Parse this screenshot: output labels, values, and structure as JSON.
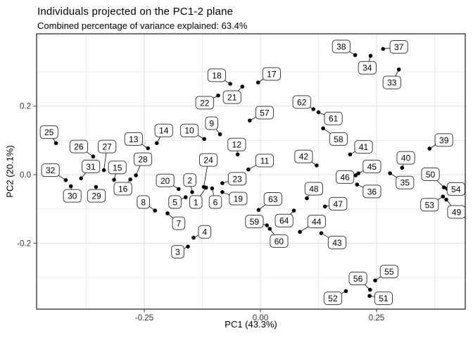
{
  "chart_data": {
    "type": "scatter",
    "title": "Individuals projected on the PC1-2 plane",
    "subtitle": "Combined percentage of variance explained: 63.4%",
    "xlabel": "PC1 (43.3%)",
    "ylabel": "PC2 (20.1%)",
    "xlim": [
      -0.4818,
      0.4409
    ],
    "ylim": [
      -0.3926,
      0.4111
    ],
    "grid": true,
    "legend": "none",
    "x_ticks": [
      {
        "value": -0.25,
        "label": "-0.25"
      },
      {
        "value": 0.0,
        "label": "0.00"
      },
      {
        "value": 0.25,
        "label": "0.25"
      }
    ],
    "y_ticks": [
      {
        "value": 0.2,
        "label": "0.2"
      },
      {
        "value": 0.0,
        "label": "0.0"
      },
      {
        "value": -0.2,
        "label": "-0.2"
      }
    ],
    "x_minor": [
      -0.375,
      -0.125,
      0.125,
      0.375
    ],
    "y_minor": [
      -0.3,
      -0.1,
      0.1,
      0.3
    ],
    "colors": {
      "point": "#000000",
      "segment": "#000000",
      "grid_major": "#dcdcdc",
      "grid_minor": "#ebebeb",
      "panel_border": "#1a1a1a",
      "label_border": "#3d3d3d",
      "label_bg": "#ffffff",
      "label_text": "#000000",
      "tick_text": "#333333"
    },
    "points": [
      {
        "id": "1",
        "x": -0.117,
        "y": -0.038,
        "lx": -0.139,
        "ly": -0.08
      },
      {
        "id": "2",
        "x": -0.147,
        "y": -0.051,
        "lx": -0.152,
        "ly": -0.016
      },
      {
        "id": "3",
        "x": -0.156,
        "y": -0.21,
        "lx": -0.178,
        "ly": -0.225
      },
      {
        "id": "4",
        "x": -0.144,
        "y": -0.184,
        "lx": -0.12,
        "ly": -0.167
      },
      {
        "id": "5",
        "x": -0.161,
        "y": -0.066,
        "lx": -0.184,
        "ly": -0.08
      },
      {
        "id": "6",
        "x": -0.104,
        "y": -0.04,
        "lx": -0.097,
        "ly": -0.08
      },
      {
        "id": "7",
        "x": -0.2,
        "y": -0.113,
        "lx": -0.176,
        "ly": -0.142
      },
      {
        "id": "8",
        "x": -0.227,
        "y": -0.105,
        "lx": -0.252,
        "ly": -0.08
      },
      {
        "id": "9",
        "x": -0.087,
        "y": 0.118,
        "lx": -0.105,
        "ly": 0.15
      },
      {
        "id": "10",
        "x": -0.121,
        "y": 0.104,
        "lx": -0.153,
        "ly": 0.129
      },
      {
        "id": "11",
        "x": -0.026,
        "y": 0.015,
        "lx": 0.009,
        "ly": 0.041
      },
      {
        "id": "12",
        "x": -0.049,
        "y": 0.059,
        "lx": -0.051,
        "ly": 0.088
      },
      {
        "id": "13",
        "x": -0.242,
        "y": 0.077,
        "lx": -0.273,
        "ly": 0.104
      },
      {
        "id": "14",
        "x": -0.223,
        "y": 0.092,
        "lx": -0.208,
        "ly": 0.129
      },
      {
        "id": "15",
        "x": -0.315,
        "y": -0.015,
        "lx": -0.308,
        "ly": 0.021
      },
      {
        "id": "16",
        "x": -0.28,
        "y": -0.014,
        "lx": -0.296,
        "ly": -0.041
      },
      {
        "id": "17",
        "x": -0.005,
        "y": 0.269,
        "lx": 0.024,
        "ly": 0.294
      },
      {
        "id": "18",
        "x": -0.065,
        "y": 0.265,
        "lx": -0.094,
        "ly": 0.29
      },
      {
        "id": "19",
        "x": -0.082,
        "y": -0.051,
        "lx": -0.048,
        "ly": -0.07
      },
      {
        "id": "20",
        "x": -0.176,
        "y": -0.042,
        "lx": -0.205,
        "ly": -0.017
      },
      {
        "id": "21",
        "x": -0.039,
        "y": 0.257,
        "lx": -0.061,
        "ly": 0.226
      },
      {
        "id": "22",
        "x": -0.091,
        "y": 0.231,
        "lx": -0.12,
        "ly": 0.21
      },
      {
        "id": "23",
        "x": -0.082,
        "y": -0.025,
        "lx": -0.05,
        "ly": -0.012
      },
      {
        "id": "24",
        "x": -0.122,
        "y": -0.036,
        "lx": -0.112,
        "ly": 0.043
      },
      {
        "id": "25",
        "x": -0.44,
        "y": 0.092,
        "lx": -0.455,
        "ly": 0.124
      },
      {
        "id": "26",
        "x": -0.36,
        "y": 0.053,
        "lx": -0.391,
        "ly": 0.082
      },
      {
        "id": "27",
        "x": -0.337,
        "y": 0.013,
        "lx": -0.33,
        "ly": 0.082
      },
      {
        "id": "28",
        "x": -0.268,
        "y": -0.002,
        "lx": -0.253,
        "ly": 0.045
      },
      {
        "id": "29",
        "x": -0.354,
        "y": -0.036,
        "lx": -0.353,
        "ly": -0.062
      },
      {
        "id": "30",
        "x": -0.408,
        "y": -0.034,
        "lx": -0.405,
        "ly": -0.062
      },
      {
        "id": "31",
        "x": -0.386,
        "y": -0.011,
        "lx": -0.365,
        "ly": 0.024
      },
      {
        "id": "32",
        "x": -0.419,
        "y": -0.016,
        "lx": -0.452,
        "ly": 0.013
      },
      {
        "id": "33",
        "x": 0.298,
        "y": 0.307,
        "lx": 0.283,
        "ly": 0.269
      },
      {
        "id": "34",
        "x": 0.237,
        "y": 0.347,
        "lx": 0.23,
        "ly": 0.312
      },
      {
        "id": "35",
        "x": 0.279,
        "y": 0.004,
        "lx": 0.311,
        "ly": -0.023
      },
      {
        "id": "36",
        "x": 0.208,
        "y": -0.029,
        "lx": 0.24,
        "ly": -0.049
      },
      {
        "id": "37",
        "x": 0.264,
        "y": 0.367,
        "lx": 0.298,
        "ly": 0.373
      },
      {
        "id": "38",
        "x": 0.204,
        "y": 0.349,
        "lx": 0.174,
        "ly": 0.374
      },
      {
        "id": "39",
        "x": 0.364,
        "y": 0.076,
        "lx": 0.395,
        "ly": 0.101
      },
      {
        "id": "40",
        "x": 0.305,
        "y": 0.02,
        "lx": 0.313,
        "ly": 0.049
      },
      {
        "id": "41",
        "x": 0.193,
        "y": 0.059,
        "lx": 0.222,
        "ly": 0.081
      },
      {
        "id": "42",
        "x": 0.121,
        "y": 0.027,
        "lx": 0.093,
        "ly": 0.053
      },
      {
        "id": "43",
        "x": 0.131,
        "y": -0.171,
        "lx": 0.165,
        "ly": -0.198
      },
      {
        "id": "44",
        "x": 0.085,
        "y": -0.167,
        "lx": 0.121,
        "ly": -0.137
      },
      {
        "id": "45",
        "x": 0.211,
        "y": 0.004,
        "lx": 0.24,
        "ly": 0.024
      },
      {
        "id": "46",
        "x": 0.205,
        "y": -0.002,
        "lx": 0.182,
        "ly": -0.007
      },
      {
        "id": "47",
        "x": 0.139,
        "y": -0.093,
        "lx": 0.167,
        "ly": -0.085
      },
      {
        "id": "48",
        "x": 0.1,
        "y": -0.069,
        "lx": 0.115,
        "ly": -0.041
      },
      {
        "id": "49",
        "x": 0.4,
        "y": -0.073,
        "lx": 0.422,
        "ly": -0.109
      },
      {
        "id": "50",
        "x": 0.395,
        "y": -0.037,
        "lx": 0.366,
        "ly": 0.001
      },
      {
        "id": "51",
        "x": 0.235,
        "y": -0.354,
        "lx": 0.265,
        "ly": -0.361
      },
      {
        "id": "52",
        "x": 0.184,
        "y": -0.34,
        "lx": 0.156,
        "ly": -0.361
      },
      {
        "id": "53",
        "x": 0.393,
        "y": -0.064,
        "lx": 0.364,
        "ly": -0.088
      },
      {
        "id": "54",
        "x": 0.402,
        "y": -0.041,
        "lx": 0.421,
        "ly": -0.042
      },
      {
        "id": "55",
        "x": 0.247,
        "y": -0.309,
        "lx": 0.277,
        "ly": -0.283
      },
      {
        "id": "56",
        "x": 0.236,
        "y": -0.336,
        "lx": 0.21,
        "ly": -0.303
      },
      {
        "id": "57",
        "x": -0.023,
        "y": 0.158,
        "lx": 0.009,
        "ly": 0.181
      },
      {
        "id": "58",
        "x": 0.135,
        "y": 0.135,
        "lx": 0.168,
        "ly": 0.104
      },
      {
        "id": "59",
        "x": 0.014,
        "y": -0.148,
        "lx": -0.013,
        "ly": -0.137
      },
      {
        "id": "60",
        "x": 0.02,
        "y": -0.158,
        "lx": 0.04,
        "ly": -0.194
      },
      {
        "id": "61",
        "x": 0.125,
        "y": 0.182,
        "lx": 0.157,
        "ly": 0.164
      },
      {
        "id": "62",
        "x": 0.114,
        "y": 0.191,
        "lx": 0.089,
        "ly": 0.212
      },
      {
        "id": "63",
        "x": -0.004,
        "y": -0.103,
        "lx": 0.027,
        "ly": -0.071
      },
      {
        "id": "64",
        "x": 0.072,
        "y": -0.105,
        "lx": 0.051,
        "ly": -0.134
      }
    ]
  }
}
